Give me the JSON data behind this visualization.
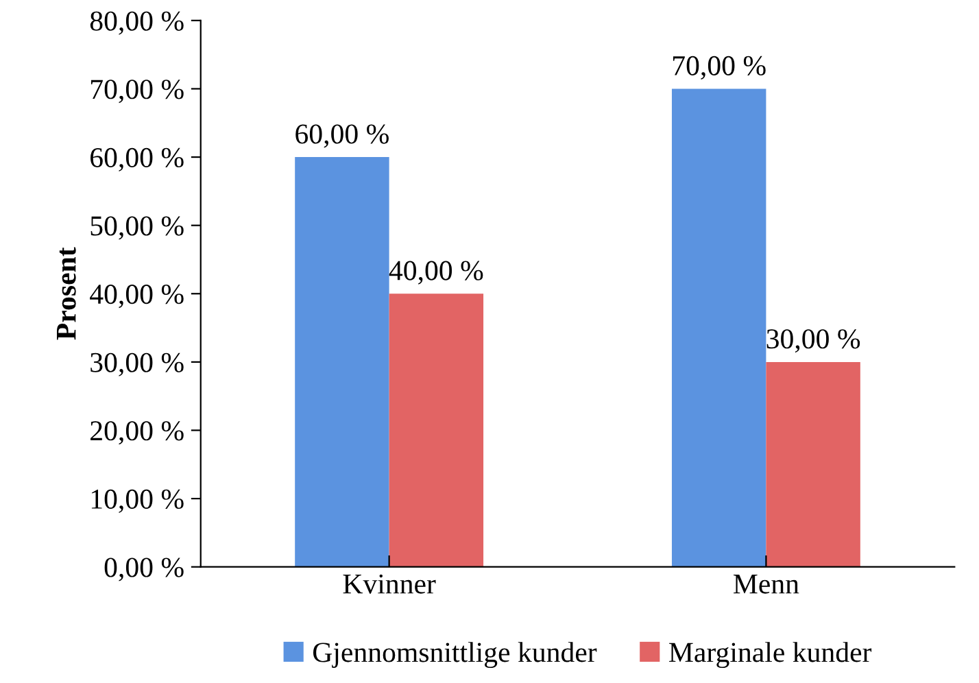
{
  "chart_data": {
    "type": "bar",
    "ylabel": "Prosent",
    "categories": [
      "Kvinner",
      "Menn"
    ],
    "series": [
      {
        "name": "Gjennomsnittlige kunder",
        "color": "#5b93e0",
        "values": [
          60,
          70
        ],
        "value_labels": [
          "60,00 %",
          "70,00 %"
        ]
      },
      {
        "name": "Marginale kunder",
        "color": "#e26464",
        "values": [
          40,
          30
        ],
        "value_labels": [
          "40,00 %",
          "30,00 %"
        ]
      }
    ],
    "ylim": [
      0,
      80
    ],
    "yticks": [
      {
        "value": 0,
        "label": "0,00 %"
      },
      {
        "value": 10,
        "label": "10,00 %"
      },
      {
        "value": 20,
        "label": "20,00 %"
      },
      {
        "value": 30,
        "label": "30,00 %"
      },
      {
        "value": 40,
        "label": "40,00 %"
      },
      {
        "value": 50,
        "label": "50,00 %"
      },
      {
        "value": 60,
        "label": "60,00 %"
      },
      {
        "value": 70,
        "label": "70,00 %"
      },
      {
        "value": 80,
        "label": "80,00 %"
      }
    ],
    "grid": false,
    "legend": "bottom"
  }
}
